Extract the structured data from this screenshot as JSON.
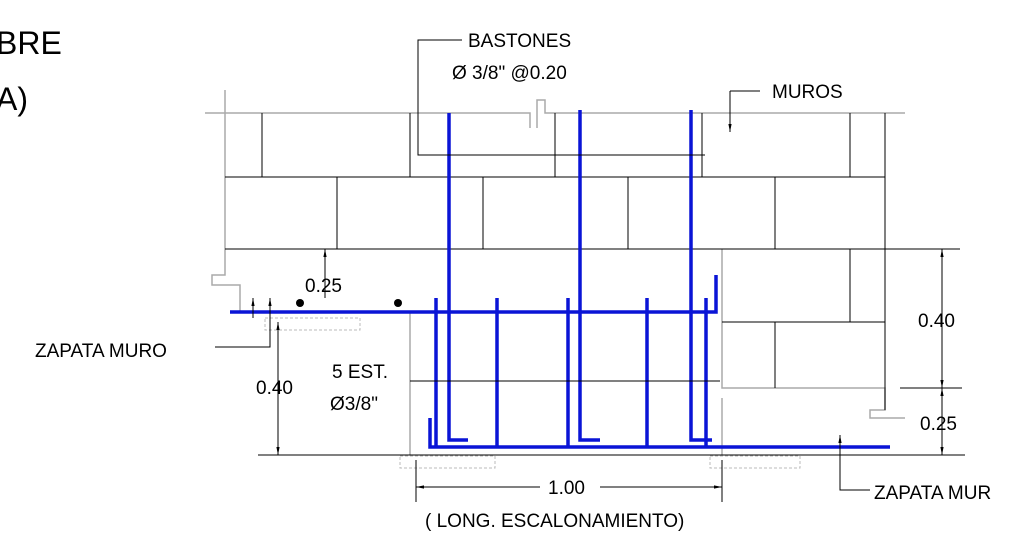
{
  "header": {
    "lines": [
      "BRE",
      "A)"
    ]
  },
  "labels": {
    "bastones": "BASTONES",
    "bastones_spec": "Ø 3/8\" @0.20",
    "muros": "MUROS",
    "dim_025_left": "0.25",
    "zapata_left": "ZAPATA MURO",
    "dim_040_right": "0.40",
    "est_count": "5 EST.",
    "est_spec": "Ø3/8\"",
    "dim_040_left": "0.40",
    "dim_025_right": "0.25",
    "dim_100": "1.00",
    "long_escalonamiento": "( LONG. ESCALONAMIENTO)",
    "zapata_right": "ZAPATA MUR"
  }
}
